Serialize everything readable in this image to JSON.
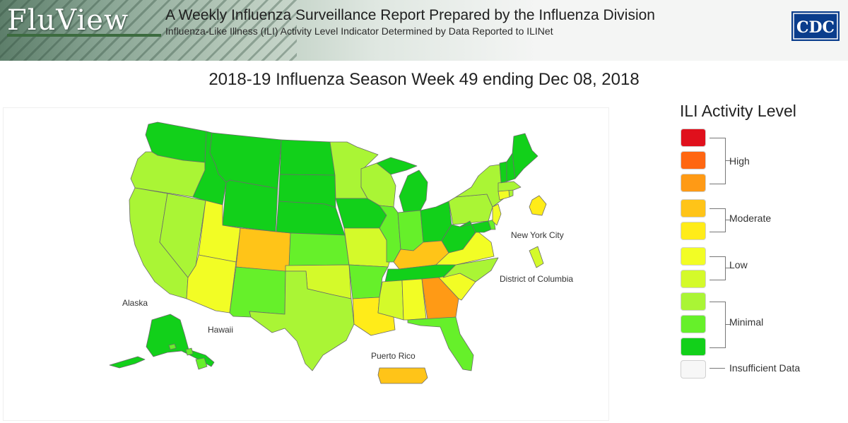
{
  "header": {
    "logo": "FluView",
    "title": "A Weekly Influenza Surveillance Report Prepared by the Influenza Division",
    "subtitle": "Influenza-Like Illness (ILI) Activity Level Indicator Determined by Data Reported to ILINet",
    "agency_logo": "CDC"
  },
  "map": {
    "title": "2018-19 Influenza Season Week 49 ending Dec 08, 2018",
    "region_labels": {
      "alaska": "Alaska",
      "hawaii": "Hawaii",
      "puerto_rico": "Puerto Rico",
      "new_york_city": "New York City",
      "district_of_columbia": "District of Columbia"
    }
  },
  "legend": {
    "title": "ILI Activity Level",
    "swatch_colors": [
      "#e0101c",
      "#ff6611",
      "#ff9a15",
      "#ffc418",
      "#ffec19",
      "#f2fd25",
      "#d4fa2a",
      "#aaf535",
      "#66f02a",
      "#12d01a",
      "#f7f7f7"
    ],
    "groups": {
      "high": "High",
      "moderate": "Moderate",
      "low": "Low",
      "minimal": "Minimal"
    },
    "insufficient": "Insufficient Data"
  },
  "colors": {
    "level_3": "#12d01a",
    "level_2": "#66f02a",
    "level_1": "#aaf535",
    "level_4": "#d4fa2a",
    "level_5": "#f2fd25",
    "level_6": "#ffec19",
    "level_7": "#ffc418",
    "level_8": "#ff9a15",
    "state_border": "#6b6b6b"
  },
  "chart_data": {
    "type": "choropleth",
    "title": "2018-19 Influenza Season Week 49 ending Dec 08, 2018",
    "legend_title": "ILI Activity Level",
    "scale": [
      {
        "level": 10,
        "group": "High",
        "color": "#e0101c"
      },
      {
        "level": 9,
        "group": "High",
        "color": "#ff6611"
      },
      {
        "level": 8,
        "group": "High",
        "color": "#ff9a15"
      },
      {
        "level": 7,
        "group": "Moderate",
        "color": "#ffc418"
      },
      {
        "level": 6,
        "group": "Moderate",
        "color": "#ffec19"
      },
      {
        "level": 5,
        "group": "Low",
        "color": "#f2fd25"
      },
      {
        "level": 4,
        "group": "Low",
        "color": "#d4fa2a"
      },
      {
        "level": 3,
        "group": "Minimal",
        "color": "#aaf535"
      },
      {
        "level": 2,
        "group": "Minimal",
        "color": "#66f02a"
      },
      {
        "level": 1,
        "group": "Minimal",
        "color": "#12d01a"
      },
      {
        "level": null,
        "group": "Insufficient Data",
        "color": "#f7f7f7"
      }
    ],
    "states": [
      {
        "state": "Washington",
        "level": 1
      },
      {
        "state": "Oregon",
        "level": 3
      },
      {
        "state": "California",
        "level": 3
      },
      {
        "state": "Nevada",
        "level": 3
      },
      {
        "state": "Idaho",
        "level": 1
      },
      {
        "state": "Montana",
        "level": 1
      },
      {
        "state": "Wyoming",
        "level": 1
      },
      {
        "state": "Utah",
        "level": 5
      },
      {
        "state": "Arizona",
        "level": 5
      },
      {
        "state": "Colorado",
        "level": 7
      },
      {
        "state": "New Mexico",
        "level": 2
      },
      {
        "state": "North Dakota",
        "level": 1
      },
      {
        "state": "South Dakota",
        "level": 1
      },
      {
        "state": "Nebraska",
        "level": 1
      },
      {
        "state": "Kansas",
        "level": 2
      },
      {
        "state": "Oklahoma",
        "level": 4
      },
      {
        "state": "Texas",
        "level": 3
      },
      {
        "state": "Minnesota",
        "level": 3
      },
      {
        "state": "Iowa",
        "level": 1
      },
      {
        "state": "Missouri",
        "level": 4
      },
      {
        "state": "Arkansas",
        "level": 2
      },
      {
        "state": "Louisiana",
        "level": 6
      },
      {
        "state": "Wisconsin",
        "level": 3
      },
      {
        "state": "Illinois",
        "level": 2
      },
      {
        "state": "Michigan",
        "level": 1
      },
      {
        "state": "Indiana",
        "level": 2
      },
      {
        "state": "Ohio",
        "level": 1
      },
      {
        "state": "Kentucky",
        "level": 7
      },
      {
        "state": "Tennessee",
        "level": 1
      },
      {
        "state": "Mississippi",
        "level": 4
      },
      {
        "state": "Alabama",
        "level": 5
      },
      {
        "state": "Georgia",
        "level": 8
      },
      {
        "state": "Florida",
        "level": 2
      },
      {
        "state": "South Carolina",
        "level": 5
      },
      {
        "state": "North Carolina",
        "level": 3
      },
      {
        "state": "Virginia",
        "level": 5
      },
      {
        "state": "West Virginia",
        "level": 1
      },
      {
        "state": "Maryland",
        "level": 1
      },
      {
        "state": "Delaware",
        "level": 2
      },
      {
        "state": "Pennsylvania",
        "level": 3
      },
      {
        "state": "New Jersey",
        "level": 5
      },
      {
        "state": "New York",
        "level": 3
      },
      {
        "state": "Connecticut",
        "level": 5
      },
      {
        "state": "Rhode Island",
        "level": 3
      },
      {
        "state": "Massachusetts",
        "level": 3
      },
      {
        "state": "Vermont",
        "level": 1
      },
      {
        "state": "New Hampshire",
        "level": 1
      },
      {
        "state": "Maine",
        "level": 1
      },
      {
        "state": "Alaska",
        "level": 1
      },
      {
        "state": "Hawaii",
        "level": 2
      },
      {
        "state": "Puerto Rico",
        "level": 7
      },
      {
        "state": "New York City",
        "level": 6
      },
      {
        "state": "District of Columbia",
        "level": 4
      }
    ]
  }
}
